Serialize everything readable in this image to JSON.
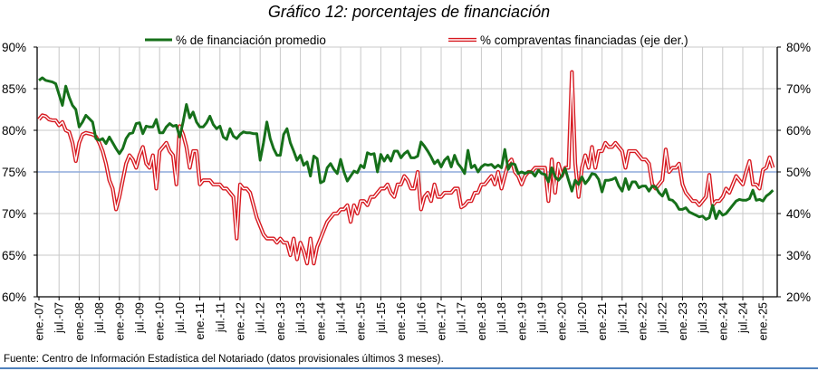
{
  "chart_data": {
    "type": "line",
    "title": "Gráfico 12: porcentajes de financiación",
    "source": "Fuente: Centro de Información Estadística del Notariado (datos provisionales últimos 3 meses).",
    "start": "ene.-07",
    "frequency": "monthly",
    "x_tick_labels": [
      "ene.-07",
      "jul.-07",
      "ene.-08",
      "jul.-08",
      "ene.-09",
      "jul.-09",
      "ene.-10",
      "jul.-10",
      "ene.-11",
      "jul.-11",
      "ene.-12",
      "jul.-12",
      "ene.-13",
      "jul.-13",
      "ene.-14",
      "jul.-14",
      "ene.-15",
      "jul.-15",
      "ene.-16",
      "jul.-16",
      "ene.-17",
      "jul.-17",
      "ene.-18",
      "jul.-18",
      "ene.-19",
      "jul.-19",
      "ene.-20",
      "jul.-20",
      "ene.-21",
      "jul.-21",
      "ene.-22",
      "jul.-22",
      "ene.-23",
      "jul.-23",
      "ene.-24",
      "jul.-24",
      "ene.-25"
    ],
    "y_left": {
      "ylim": [
        60,
        90
      ],
      "ticks": [
        "60%",
        "65%",
        "70%",
        "75%",
        "80%",
        "85%",
        "90%"
      ]
    },
    "y_right": {
      "ylim": [
        20,
        80
      ],
      "ticks": [
        "20%",
        "30%",
        "40%",
        "50%",
        "60%",
        "70%",
        "80%"
      ]
    },
    "reference_line": {
      "axis": "left",
      "value": 75,
      "color": "#8eaadb"
    },
    "grid": true,
    "legend_position": "top",
    "series": [
      {
        "name": "% de financiación promedio",
        "axis": "left",
        "color": "#16701a",
        "values": [
          86.0,
          86.3,
          86.0,
          85.9,
          85.8,
          85.6,
          84.3,
          83.0,
          85.3,
          84.0,
          83.0,
          82.5,
          80.4,
          81.0,
          81.8,
          81.4,
          81.0,
          79.0,
          78.8,
          79.0,
          78.4,
          79.2,
          78.5,
          77.8,
          77.2,
          77.8,
          79.0,
          79.6,
          79.7,
          80.8,
          80.9,
          79.6,
          80.5,
          80.4,
          80.4,
          81.3,
          79.7,
          79.7,
          80.4,
          80.8,
          80.5,
          80.6,
          79.2,
          81.0,
          83.1,
          81.5,
          82.2,
          81.0,
          80.4,
          80.4,
          80.9,
          81.7,
          80.7,
          80.2,
          80.5,
          79.2,
          78.9,
          80.2,
          79.3,
          79.0,
          79.5,
          79.8,
          79.7,
          79.7,
          79.6,
          79.6,
          76.4,
          78.5,
          81.0,
          79.0,
          77.8,
          77.0,
          77.0,
          79.5,
          80.2,
          78.5,
          77.5,
          76.4,
          77.0,
          75.8,
          76.2,
          74.5,
          76.9,
          76.6,
          73.7,
          73.9,
          75.5,
          76.0,
          75.3,
          74.8,
          76.5,
          75.0,
          73.9,
          74.5,
          75.1,
          74.9,
          75.8,
          75.5,
          77.3,
          77.1,
          77.2,
          75.0,
          77.1,
          76.3,
          77.0,
          76.3,
          77.5,
          77.5,
          76.7,
          77.2,
          77.5,
          76.7,
          76.7,
          76.9,
          78.6,
          78.1,
          77.5,
          76.8,
          76.0,
          76.4,
          75.6,
          76.4,
          76.8,
          75.6,
          77.0,
          76.0,
          75.5,
          74.8,
          77.6,
          75.5,
          75.8,
          75.0,
          75.6,
          75.9,
          75.8,
          75.9,
          75.5,
          75.8,
          75.5,
          77.7,
          75.3,
          76.0,
          75.9,
          74.8,
          75.0,
          74.8,
          75.0,
          75.0,
          74.5,
          75.2,
          74.8,
          74.7,
          73.8,
          75.5,
          74.4,
          74.0,
          74.5,
          75.4,
          74.0,
          72.7,
          74.0,
          73.5,
          74.4,
          73.6,
          74.1,
          74.8,
          74.7,
          74.1,
          72.6,
          74.0,
          74.0,
          74.1,
          74.3,
          73.3,
          72.7,
          74.2,
          72.9,
          73.8,
          73.8,
          73.1,
          73.3,
          73.3,
          72.7,
          73.3,
          73.2,
          72.5,
          72.1,
          72.9,
          71.7,
          71.6,
          71.2,
          70.5,
          70.5,
          70.7,
          70.2,
          70.0,
          69.8,
          69.6,
          69.7,
          69.3,
          69.5,
          71.0,
          69.4,
          70.3,
          69.8,
          70.0,
          70.5,
          71.0,
          71.5,
          71.7,
          71.6,
          71.6,
          71.8,
          72.8,
          71.6,
          71.7,
          71.5,
          72.1,
          72.4,
          72.8
        ]
      },
      {
        "name": "% compraventas financiadas (eje der.)",
        "axis": "right",
        "color": "#d71920",
        "values": [
          62.6,
          63.6,
          63.4,
          62.6,
          62.4,
          62.4,
          61.2,
          62.0,
          60.0,
          59.6,
          57.0,
          52.6,
          57.0,
          59.0,
          59.4,
          59.2,
          59.0,
          58.5,
          57.0,
          55.0,
          52.0,
          48.0,
          46.0,
          41.0,
          44.0,
          48.0,
          52.0,
          54.0,
          53.0,
          51.0,
          54.0,
          56.0,
          52.0,
          51.0,
          54.0,
          46.0,
          55.0,
          56.0,
          57.0,
          55.0,
          54.0,
          47.0,
          61.0,
          59.0,
          56.0,
          51.0,
          55.0,
          55.0,
          47.0,
          48.0,
          48.0,
          48.0,
          47.0,
          47.0,
          47.0,
          46.0,
          46.0,
          45.0,
          44.0,
          34.0,
          47.0,
          46.0,
          46.0,
          45.0,
          42.0,
          39.0,
          37.0,
          35.0,
          34.0,
          34.0,
          34.0,
          33.0,
          34.0,
          33.0,
          33.0,
          30.0,
          34.0,
          29.0,
          33.0,
          31.0,
          28.0,
          34.0,
          28.0,
          32.0,
          34.0,
          36.0,
          38.0,
          39.0,
          40.0,
          40.0,
          41.0,
          41.0,
          42.0,
          38.0,
          42.0,
          40.0,
          43.0,
          43.0,
          42.0,
          44.0,
          44.0,
          45.0,
          46.0,
          46.0,
          47.0,
          45.0,
          44.0,
          47.0,
          47.0,
          49.0,
          48.0,
          46.0,
          46.0,
          50.0,
          41.0,
          44.0,
          45.0,
          43.0,
          47.0,
          44.0,
          44.0,
          45.0,
          45.0,
          45.0,
          46.0,
          46.0,
          41.5,
          42.0,
          43.0,
          43.0,
          45.0,
          45.0,
          47.0,
          47.0,
          48.0,
          49.0,
          47.0,
          50.0,
          46.0,
          49.0,
          52.0,
          53.0,
          50.0,
          49.0,
          47.0,
          49.0,
          50.0,
          50.0,
          51.0,
          51.0,
          51.0,
          51.0,
          43.0,
          53.0,
          45.0,
          52.0,
          49.0,
          51.0,
          51.0,
          74.0,
          52.0,
          44.0,
          51.0,
          54.0,
          51.0,
          56.0,
          51.0,
          55.0,
          55.0,
          57.0,
          56.0,
          56.0,
          57.0,
          56.0,
          55.0,
          51.0,
          55.0,
          55.0,
          55.0,
          54.0,
          53.0,
          53.0,
          52.0,
          47.0,
          46.0,
          47.0,
          48.0,
          55.4,
          50.0,
          51.0,
          51.0,
          52.0,
          47.0,
          45.0,
          44.0,
          43.0,
          43.0,
          42.0,
          43.0,
          44.0,
          49.3,
          42.0,
          43.0,
          43.0,
          44.0,
          46.0,
          45.0,
          47.0,
          49.0,
          48.0,
          47.0,
          50.0,
          52.6,
          47.0,
          47.0,
          46.0,
          50.5,
          51.0,
          53.5,
          51.0
        ]
      }
    ]
  }
}
